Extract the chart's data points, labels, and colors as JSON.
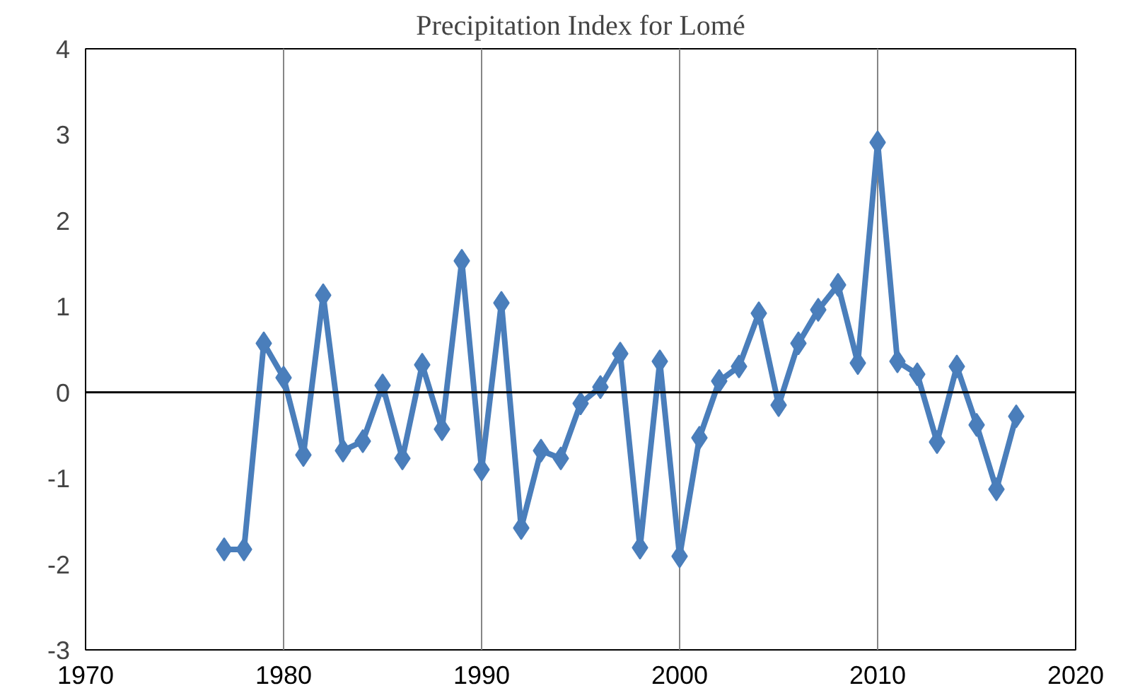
{
  "chart_data": {
    "type": "line",
    "title": "Precipitation Index for Lomé",
    "x": [
      1977,
      1978,
      1979,
      1980,
      1981,
      1982,
      1983,
      1984,
      1985,
      1986,
      1987,
      1988,
      1989,
      1990,
      1991,
      1992,
      1993,
      1994,
      1995,
      1996,
      1997,
      1998,
      1999,
      2000,
      2001,
      2002,
      2003,
      2004,
      2005,
      2006,
      2007,
      2008,
      2009,
      2010,
      2011,
      2012,
      2013,
      2014,
      2015,
      2016,
      2017
    ],
    "series": [
      {
        "color": "#4a7ebb",
        "values": [
          -1.83,
          -1.83,
          0.57,
          0.17,
          -0.73,
          1.13,
          -0.68,
          -0.57,
          0.08,
          -0.77,
          0.32,
          -0.43,
          1.53,
          -0.9,
          1.04,
          -1.58,
          -0.68,
          -0.77,
          -0.13,
          0.06,
          0.45,
          -1.81,
          0.36,
          -1.91,
          -0.53,
          0.13,
          0.3,
          0.92,
          -0.15,
          0.57,
          0.96,
          1.25,
          0.34,
          2.91,
          0.36,
          0.21,
          -0.58,
          0.3,
          -0.38,
          -1.13,
          -0.28
        ]
      }
    ],
    "xlim": [
      1970,
      2020
    ],
    "xticks": [
      1970,
      1980,
      1990,
      2000,
      2010,
      2020
    ],
    "ylim": [
      -3,
      4
    ],
    "yticks": [
      -3,
      -2,
      -1,
      0,
      1,
      2,
      3,
      4
    ],
    "grid": "x",
    "marker": "diamond",
    "line_style": "solid"
  }
}
